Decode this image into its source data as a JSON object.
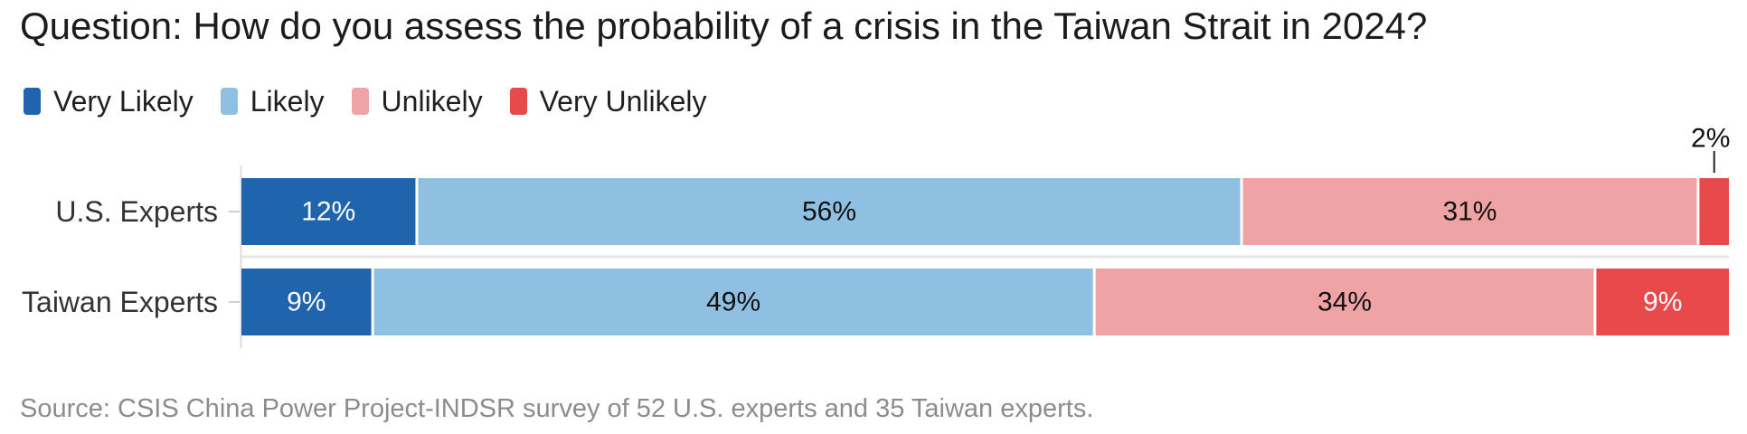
{
  "title": "Question: How do you assess the probability of a crisis in the Taiwan Strait in 2024?",
  "source": "Source: CSIS China Power Project-INDSR survey of 52 U.S. experts and 35 Taiwan experts.",
  "legend": [
    {
      "label": "Very Likely",
      "color": "#1f64ad"
    },
    {
      "label": "Likely",
      "color": "#90c0e1"
    },
    {
      "label": "Unlikely",
      "color": "#f0a3a5"
    },
    {
      "label": "Very Unlikely",
      "color": "#e8494a"
    }
  ],
  "chart_data": {
    "type": "bar",
    "orientation": "horizontal",
    "stacked": true,
    "title": "Question: How do you assess the probability of a crisis in the Taiwan Strait in 2024?",
    "categories": [
      "U.S. Experts",
      "Taiwan Experts"
    ],
    "series": [
      {
        "name": "Very Likely",
        "color": "#1f64ad",
        "values": [
          12,
          9
        ],
        "labels": [
          "12%",
          "9%"
        ]
      },
      {
        "name": "Likely",
        "color": "#90c0e1",
        "values": [
          56,
          49
        ],
        "labels": [
          "56%",
          "49%"
        ]
      },
      {
        "name": "Unlikely",
        "color": "#f0a3a5",
        "values": [
          31,
          34
        ],
        "labels": [
          "31%",
          "34%"
        ]
      },
      {
        "name": "Very Unlikely",
        "color": "#e8494a",
        "values": [
          2,
          9
        ],
        "labels": [
          "2%",
          "9%"
        ]
      }
    ],
    "xlim": [
      0,
      100
    ],
    "legend_position": "top-left",
    "grid": false
  }
}
